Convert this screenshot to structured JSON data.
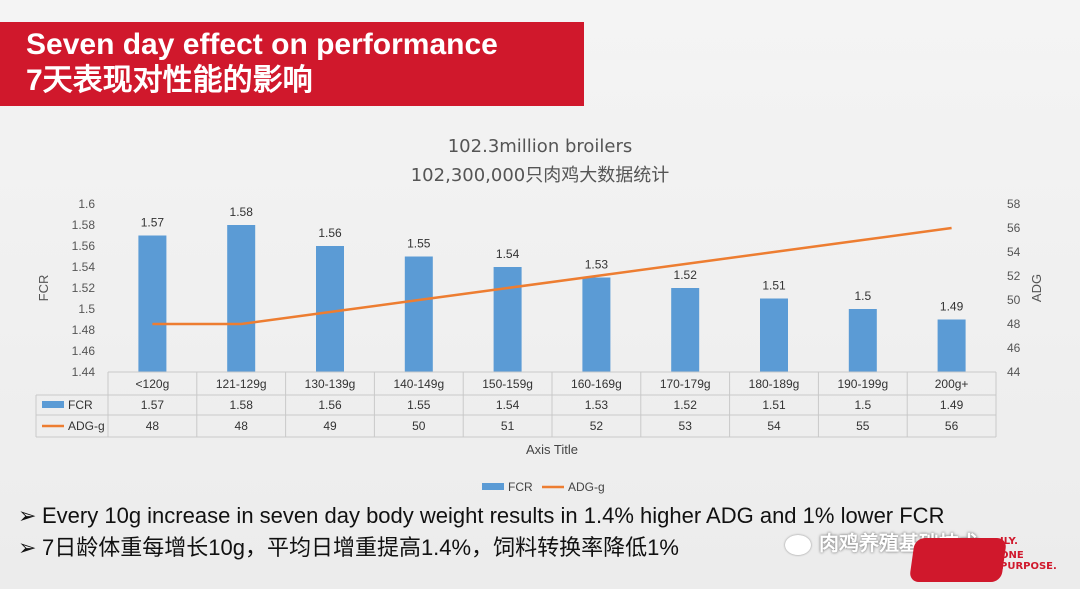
{
  "banner": {
    "title_en": "Seven day effect on performance",
    "title_cn": "7天表现对性能的影响"
  },
  "chart_data": {
    "type": "bar",
    "title": "102.3million broilers",
    "subtitle": "102,300,000只肉鸡大数据统计",
    "categories": [
      "<120g",
      "121-129g",
      "130-139g",
      "140-149g",
      "150-159g",
      "160-169g",
      "170-179g",
      "180-189g",
      "190-199g",
      "200g+"
    ],
    "series": [
      {
        "name": "FCR",
        "type": "bar",
        "axis": "left",
        "color": "#5b9bd5",
        "values": [
          1.57,
          1.58,
          1.56,
          1.55,
          1.54,
          1.53,
          1.52,
          1.51,
          1.5,
          1.49
        ]
      },
      {
        "name": "ADG-g",
        "type": "line",
        "axis": "right",
        "color": "#ed7d31",
        "values": [
          48,
          48,
          49,
          50,
          51,
          52,
          53,
          54,
          55,
          56
        ]
      }
    ],
    "ylabel": "FCR",
    "y2label": "ADG",
    "xlabel": "Axis Title",
    "ylim": [
      1.44,
      1.6
    ],
    "y2lim": [
      44,
      58
    ],
    "yticks": [
      "1.6",
      "1.58",
      "1.56",
      "1.54",
      "1.52",
      "1.5",
      "1.48",
      "1.46",
      "1.44"
    ],
    "y2ticks": [
      "58",
      "56",
      "54",
      "52",
      "50",
      "48",
      "46",
      "44"
    ],
    "data_table": true,
    "legend": "bottom",
    "grid": false
  },
  "bullets": [
    "Every 10g increase in seven day body weight results in 1.4% higher ADG and 1% lower FCR",
    "7日龄体重每增长10g，平均日增重提高1.4%，饲料转换率降低1%"
  ],
  "bullet_marker": "➢",
  "watermark": {
    "text": "肉鸡养殖基础技术",
    "icon": "wechat-icon"
  },
  "logo": {
    "tag1": "ILY.",
    "tag2": "ONE PURPOSE."
  }
}
